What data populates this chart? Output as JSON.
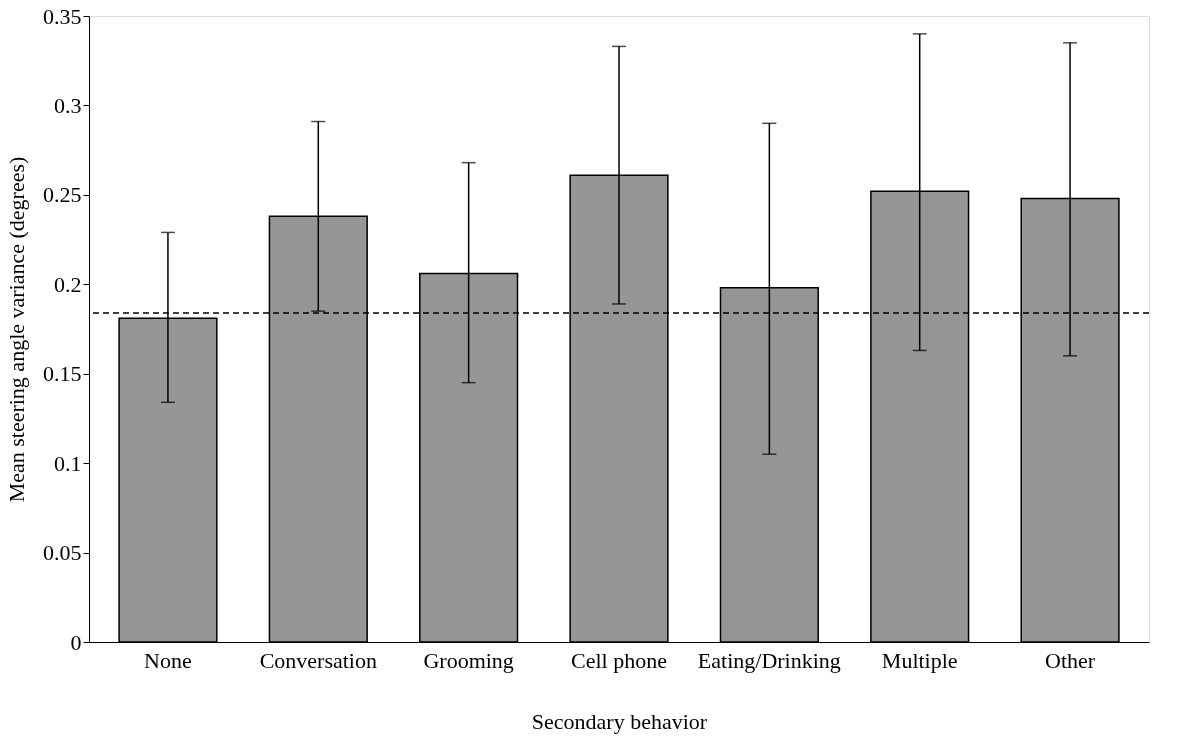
{
  "chart_data": {
    "type": "bar",
    "xlabel": "Secondary behavior",
    "ylabel": "Mean steering angle variance (degrees)",
    "categories": [
      "None",
      "Conversation",
      "Grooming",
      "Cell phone",
      "Eating/Drinking",
      "Multiple",
      "Other"
    ],
    "values": [
      0.181,
      0.238,
      0.206,
      0.261,
      0.198,
      0.252,
      0.248
    ],
    "errors": [
      [
        0.134,
        0.229
      ],
      [
        0.185,
        0.291
      ],
      [
        0.145,
        0.268
      ],
      [
        0.189,
        0.333
      ],
      [
        0.105,
        0.29
      ],
      [
        0.163,
        0.34
      ],
      [
        0.16,
        0.335
      ]
    ],
    "color": "#969696",
    "ylim": [
      0,
      0.35
    ],
    "yticks": [
      0,
      {
        "value": 0.05,
        "label": "0.05"
      },
      {
        "value": 0.1,
        "label": "0.1"
      },
      {
        "value": 0.15,
        "label": "0.15"
      },
      {
        "value": 0.2,
        "label": "0.2"
      },
      {
        "value": 0.25,
        "label": "0.25"
      },
      {
        "value": 0.3,
        "label": "0.3"
      },
      {
        "value": 0.35,
        "label": "0.35"
      }
    ],
    "ref_lines": [
      {
        "axis": "y",
        "value": 0.184,
        "line_style": "dashed",
        "color": "#000000"
      }
    ],
    "grid": false
  }
}
